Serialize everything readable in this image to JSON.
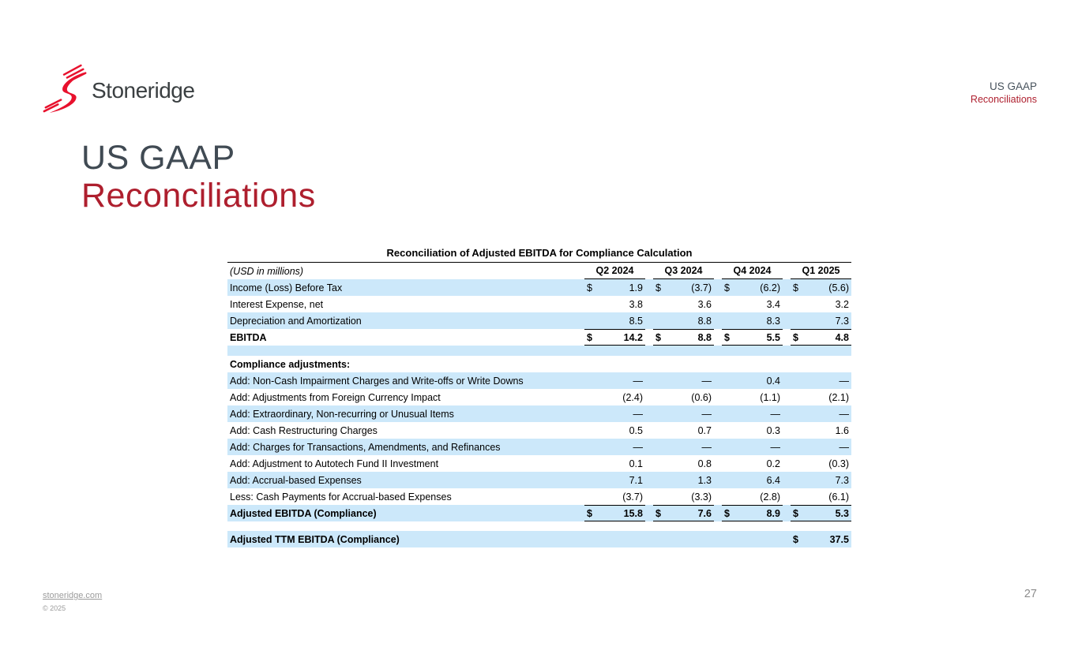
{
  "colors": {
    "accent_red": "#ae1f2e",
    "logo_red": "#e8112d",
    "title_dark": "#404a53",
    "row_shade_blue": "#cce8fa",
    "footer_gray": "#9b9b9b"
  },
  "logo": {
    "text": "Stoneridge",
    "icon": "stoneridge-s-flash"
  },
  "corner": {
    "line1": "US GAAP",
    "line2": "Reconciliations"
  },
  "title": {
    "line1": "US GAAP",
    "line2": "Reconciliations"
  },
  "table": {
    "title": "Reconciliation of Adjusted EBITDA for Compliance Calculation",
    "unit_label": "(USD in millions)",
    "columns": [
      "Q2 2024",
      "Q3 2024",
      "Q4 2024",
      "Q1 2025"
    ],
    "rows": [
      {
        "label": "Income (Loss) Before Tax",
        "shade": true,
        "cells": [
          {
            "d": "$",
            "v": "1.9"
          },
          {
            "d": "$",
            "v": "(3.7)"
          },
          {
            "d": "$",
            "v": "(6.2)"
          },
          {
            "d": "$",
            "v": "(5.6)"
          }
        ]
      },
      {
        "label": "Interest Expense, net",
        "cells": [
          {
            "v": "3.8"
          },
          {
            "v": "3.6"
          },
          {
            "v": "3.4"
          },
          {
            "v": "3.2"
          }
        ]
      },
      {
        "label": "Depreciation and Amortization",
        "shade": true,
        "cells": [
          {
            "v": "8.5"
          },
          {
            "v": "8.8"
          },
          {
            "v": "8.3"
          },
          {
            "v": "7.3"
          }
        ]
      },
      {
        "label": "EBITDA",
        "bold": true,
        "total": true,
        "cells": [
          {
            "d": "$",
            "v": "14.2"
          },
          {
            "d": "$",
            "v": "8.8"
          },
          {
            "d": "$",
            "v": "5.5"
          },
          {
            "d": "$",
            "v": "4.8"
          }
        ]
      },
      {
        "spacer": "blue"
      },
      {
        "label": "Compliance adjustments:",
        "bold": true,
        "cells": null
      },
      {
        "label": "Add: Non-Cash Impairment Charges and Write-offs or Write Downs",
        "shade": true,
        "cells": [
          {
            "v": "—"
          },
          {
            "v": "—"
          },
          {
            "v": "0.4"
          },
          {
            "v": "—"
          }
        ]
      },
      {
        "label": "Add: Adjustments from Foreign Currency Impact",
        "cells": [
          {
            "v": "(2.4)"
          },
          {
            "v": "(0.6)"
          },
          {
            "v": "(1.1)"
          },
          {
            "v": "(2.1)"
          }
        ]
      },
      {
        "label": "Add: Extraordinary, Non-recurring or Unusual Items",
        "shade": true,
        "cells": [
          {
            "v": "—"
          },
          {
            "v": "—"
          },
          {
            "v": "—"
          },
          {
            "v": "—"
          }
        ]
      },
      {
        "label": "Add: Cash Restructuring Charges",
        "cells": [
          {
            "v": "0.5"
          },
          {
            "v": "0.7"
          },
          {
            "v": "0.3"
          },
          {
            "v": "1.6"
          }
        ]
      },
      {
        "label": "Add: Charges for Transactions, Amendments, and Refinances",
        "shade": true,
        "cells": [
          {
            "v": "—"
          },
          {
            "v": "—"
          },
          {
            "v": "—"
          },
          {
            "v": "—"
          }
        ]
      },
      {
        "label": "Add: Adjustment to Autotech Fund II Investment",
        "cells": [
          {
            "v": "0.1"
          },
          {
            "v": "0.8"
          },
          {
            "v": "0.2"
          },
          {
            "v": "(0.3)"
          }
        ]
      },
      {
        "label": "Add:  Accrual-based Expenses",
        "shade": true,
        "cells": [
          {
            "v": "7.1"
          },
          {
            "v": "1.3"
          },
          {
            "v": "6.4"
          },
          {
            "v": "7.3"
          }
        ]
      },
      {
        "label": "Less: Cash Payments for Accrual-based Expenses",
        "cells": [
          {
            "v": "(3.7)"
          },
          {
            "v": "(3.3)"
          },
          {
            "v": "(2.8)"
          },
          {
            "v": "(6.1)"
          }
        ]
      },
      {
        "label": "Adjusted EBITDA (Compliance)",
        "bold": true,
        "total": true,
        "shade": true,
        "cells": [
          {
            "d": "$",
            "v": "15.8"
          },
          {
            "d": "$",
            "v": "7.6"
          },
          {
            "d": "$",
            "v": "8.9"
          },
          {
            "d": "$",
            "v": "5.3"
          }
        ]
      },
      {
        "spacer": "white"
      },
      {
        "label": "Adjusted TTM EBITDA (Compliance)",
        "bold": true,
        "shade": true,
        "cells": [
          null,
          null,
          null,
          {
            "d": "$",
            "v": "37.5"
          }
        ]
      }
    ]
  },
  "footer": {
    "site": "stoneridge.com",
    "copyright": "© 2025",
    "page": "27"
  }
}
